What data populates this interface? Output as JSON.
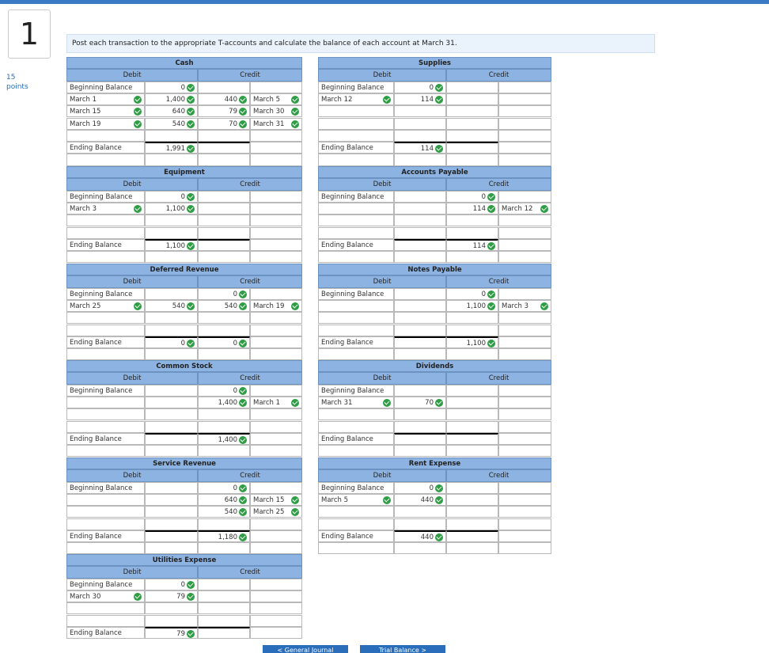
{
  "question": {
    "number": "1",
    "points": "15",
    "points_label": "points",
    "instruction": "Post each transaction to the appropriate T-accounts and calculate the balance of each account at March 31."
  },
  "accounts": [
    {
      "name": "Cash",
      "debit_heading": "Debit",
      "credit_heading": "Credit",
      "rows": [
        {
          "debit_label": "Beginning Balance",
          "debit": 0
        },
        {
          "debit_label": "March 1",
          "debit": {
            "value": 1400,
            "label": "1,400"
          },
          "credit": 440,
          "credit_label": "March 5"
        },
        {
          "debit_label": "March 15",
          "debit": 640,
          "credit": 79,
          "credit_label": "March 30"
        },
        {
          "debit_label": "March 19",
          "debit": 540,
          "credit": 70,
          "credit_label": "March 31"
        }
      ],
      "ending": {
        "label": "Ending Balance",
        "debit": {
          "value": 1991,
          "label": "1,991"
        }
      }
    },
    {
      "name": "Supplies",
      "debit_heading": "Debit",
      "credit_heading": "Credit",
      "rows": [
        {
          "debit_label": "Beginning Balance",
          "debit": 0
        },
        {
          "debit_label": "March 12",
          "debit": 114
        }
      ],
      "ending": {
        "label": "Ending Balance",
        "debit": 114
      }
    },
    {
      "name": "Equipment",
      "debit_heading": "Debit",
      "credit_heading": "Credit",
      "rows": [
        {
          "debit_label": "Beginning Balance",
          "debit": 0
        },
        {
          "debit_label": "March 3",
          "debit": {
            "value": 1100,
            "label": "1,100"
          }
        }
      ],
      "ending": {
        "label": "Ending Balance",
        "debit": {
          "value": 1100,
          "label": "1,100"
        }
      }
    },
    {
      "name": "Accounts Payable",
      "debit_heading": "Debit",
      "credit_heading": "Credit",
      "rows": [
        {
          "debit_label": "Beginning Balance",
          "credit": 0
        },
        {
          "credit": 114,
          "credit_label": "March 12"
        }
      ],
      "ending": {
        "label": "Ending Balance",
        "credit": 114
      }
    },
    {
      "name": "Deferred Revenue",
      "debit_heading": "Debit",
      "credit_heading": "Credit",
      "rows": [
        {
          "debit_label": "Beginning Balance",
          "credit": 0
        },
        {
          "debit_label": "March 25",
          "debit": 540,
          "credit": 540,
          "credit_label": "March 19"
        }
      ],
      "ending": {
        "label": "Ending Balance",
        "debit": 0,
        "credit": 0
      }
    },
    {
      "name": "Notes Payable",
      "debit_heading": "Debit",
      "credit_heading": "Credit",
      "rows": [
        {
          "debit_label": "Beginning Balance",
          "credit": 0
        },
        {
          "credit": {
            "value": 1100,
            "label": "1,100"
          },
          "credit_label": "March 3"
        }
      ],
      "ending": {
        "label": "Ending Balance",
        "credit": {
          "value": 1100,
          "label": "1,100"
        }
      }
    },
    {
      "name": "Common Stock",
      "debit_heading": "Debit",
      "credit_heading": "Credit",
      "rows": [
        {
          "debit_label": "Beginning Balance",
          "credit": 0
        },
        {
          "credit": {
            "value": 1400,
            "label": "1,400"
          },
          "credit_label": "March 1"
        }
      ],
      "ending": {
        "label": "Ending Balance",
        "credit": {
          "value": 1400,
          "label": "1,400"
        }
      }
    },
    {
      "name": "Dividends",
      "debit_heading": "Debit",
      "credit_heading": "Credit",
      "rows": [
        {
          "debit_label": "Beginning Balance"
        },
        {
          "debit_label": "March 31",
          "debit": 70
        }
      ],
      "ending": {
        "label": "Ending Balance"
      }
    },
    {
      "name": "Service Revenue",
      "debit_heading": "Debit",
      "credit_heading": "Credit",
      "rows": [
        {
          "debit_label": "Beginning Balance",
          "credit": 0
        },
        {
          "credit": 640,
          "credit_label": "March 15"
        },
        {
          "credit": 540,
          "credit_label": "March 25"
        }
      ],
      "ending": {
        "label": "Ending Balance",
        "credit": {
          "value": 1180,
          "label": "1,180"
        }
      }
    },
    {
      "name": "Rent Expense",
      "debit_heading": "Debit",
      "credit_heading": "Credit",
      "rows": [
        {
          "debit_label": "Beginning Balance",
          "debit": 0
        },
        {
          "debit_label": "March 5",
          "debit": 440
        }
      ],
      "ending": {
        "label": "Ending Balance",
        "debit": 440
      }
    },
    {
      "name": "Utilities Expense",
      "debit_heading": "Debit",
      "credit_heading": "Credit",
      "rows": [
        {
          "debit_label": "Beginning Balance",
          "debit": 0
        },
        {
          "debit_label": "March 30",
          "debit": 79
        }
      ],
      "ending": {
        "label": "Ending Balance",
        "debit": 79
      }
    }
  ],
  "nav": {
    "prev": "< General Journal",
    "next": "Trial Balance >"
  }
}
